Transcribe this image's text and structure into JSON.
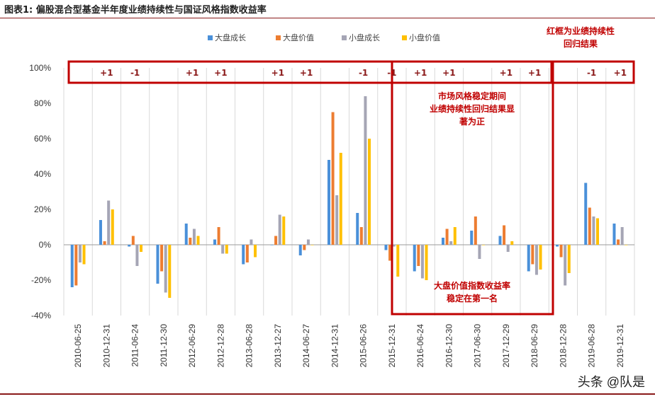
{
  "title": "图表1:   偏股混合型基金半年度业绩持续性与国证风格指数收益率",
  "watermark": "头条 @队是",
  "colors": {
    "large_growth": "#4a90d9",
    "large_value": "#ed7d31",
    "small_growth": "#a5a5b5",
    "small_value": "#ffc000",
    "annotation_red": "#c00000",
    "grid": "#d9d9d9",
    "axis_text": "#333333"
  },
  "chart_data": {
    "type": "bar",
    "categories": [
      "2010-06-25",
      "2010-12-31",
      "2011-06-24",
      "2011-12-30",
      "2012-06-29",
      "2012-12-28",
      "2013-06-28",
      "2013-12-27",
      "2014-06-27",
      "2014-12-31",
      "2015-06-26",
      "2015-12-31",
      "2016-06-24",
      "2016-12-30",
      "2017-06-30",
      "2017-12-29",
      "2018-06-29",
      "2018-12-28",
      "2019-06-28",
      "2019-12-31"
    ],
    "series": [
      {
        "name": "大盘成长",
        "color": "#4a90d9",
        "values": [
          -24,
          14,
          -1,
          -22,
          12,
          3,
          -11,
          0,
          -6,
          48,
          18,
          -3,
          -15,
          4,
          8,
          5,
          -15,
          -1,
          35,
          12
        ]
      },
      {
        "name": "大盘价值",
        "color": "#ed7d31",
        "values": [
          -23,
          2,
          5,
          -15,
          4,
          10,
          -10,
          5,
          -3,
          75,
          10,
          -9,
          -12,
          9,
          16,
          11,
          -11,
          -7,
          21,
          3
        ]
      },
      {
        "name": "小盘成长",
        "color": "#a5a5b5",
        "values": [
          -10,
          25,
          -12,
          -27,
          9,
          -5,
          3,
          17,
          3,
          28,
          84,
          -1,
          -19,
          2,
          -8,
          -4,
          -17,
          -23,
          16,
          10
        ]
      },
      {
        "name": "小盘价值",
        "color": "#ffc000",
        "values": [
          -11,
          20,
          -4,
          -30,
          5,
          -5,
          -7,
          16,
          0,
          52,
          60,
          -18,
          -20,
          10,
          0,
          2,
          -14,
          -16,
          15,
          0
        ]
      }
    ],
    "y_ticks": [
      "100%",
      "80%",
      "60%",
      "40%",
      "20%",
      "0%",
      "-20%",
      "-40%"
    ],
    "ylim": [
      -40,
      100
    ],
    "grid": "vertical",
    "legend": "top-center",
    "persistence_marks": [
      "",
      "+1",
      "-1",
      "",
      "+1",
      "+1",
      "",
      "+1",
      "+1",
      "",
      "-1",
      "-1",
      "+1",
      "+1",
      "",
      "+1",
      "+1",
      "",
      "-1",
      "+1"
    ],
    "annotations": {
      "red_box_note": [
        "红框为业绩持续性",
        "回归结果"
      ],
      "mid_note": [
        "市场风格稳定期间",
        "业绩持续性回归结果显",
        "著为正"
      ],
      "bottom_note": [
        "大盘价值指数收益率",
        "稳定在第一名"
      ]
    }
  }
}
